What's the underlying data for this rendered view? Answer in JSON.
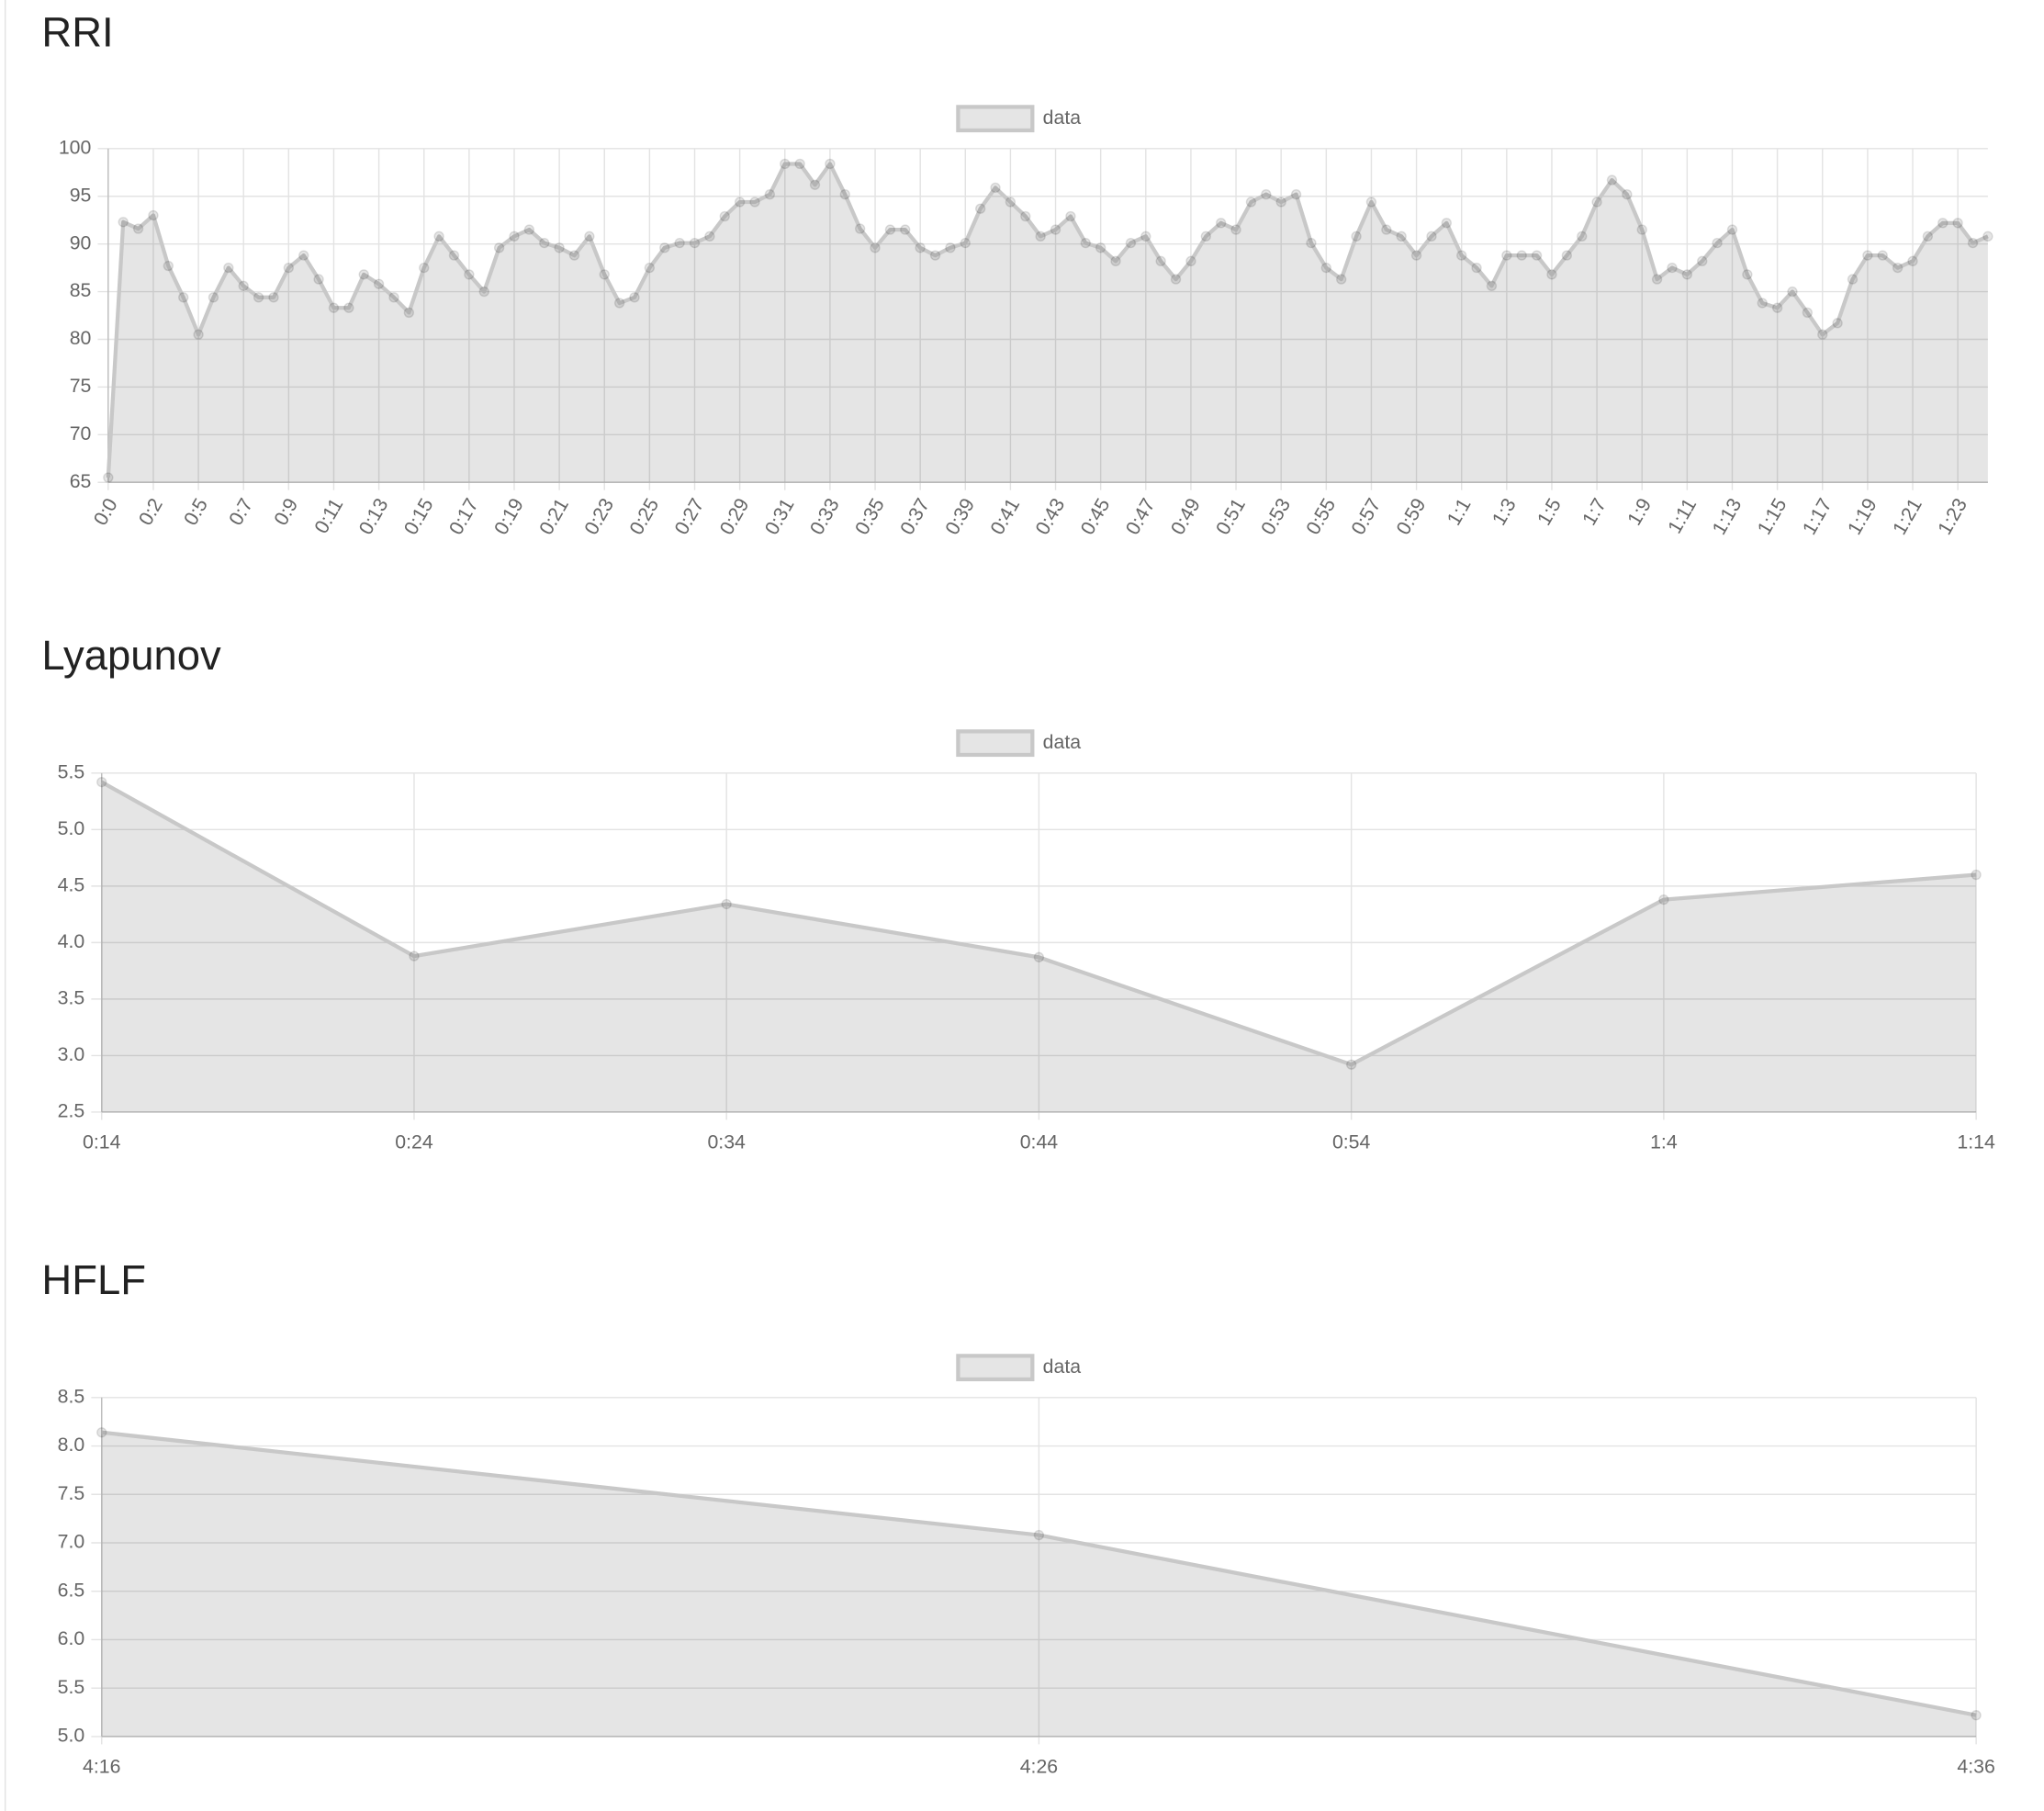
{
  "chart_data": [
    {
      "type": "line",
      "title": "RRI",
      "categories": [
        "0:0",
        null,
        null,
        "0:2",
        null,
        null,
        "0:5",
        null,
        null,
        "0:7",
        null,
        null,
        "0:9",
        null,
        null,
        "0:11",
        null,
        null,
        "0:13",
        null,
        null,
        "0:15",
        null,
        null,
        "0:17",
        null,
        null,
        "0:19",
        null,
        null,
        "0:21",
        null,
        null,
        "0:23",
        null,
        null,
        "0:25",
        null,
        null,
        "0:27",
        null,
        null,
        "0:29",
        null,
        null,
        "0:31",
        null,
        null,
        "0:33",
        null,
        null,
        "0:35",
        null,
        null,
        "0:37",
        null,
        null,
        "0:39",
        null,
        null,
        "0:41",
        null,
        null,
        "0:43",
        null,
        null,
        "0:45",
        null,
        null,
        "0:47",
        null,
        null,
        "0:49",
        null,
        null,
        "0:51",
        null,
        null,
        "0:53",
        null,
        null,
        "0:55",
        null,
        null,
        "0:57",
        null,
        null,
        "0:59",
        null,
        null,
        "1:1",
        null,
        null,
        "1:3",
        null,
        null,
        "1:5",
        null,
        null,
        "1:7",
        null,
        null,
        "1:9",
        null,
        null,
        "1:11",
        null,
        null,
        "1:13",
        null,
        null,
        "1:15",
        null,
        null,
        "1:17",
        null,
        null,
        "1:19",
        null,
        null,
        "1:21",
        null,
        null,
        "1:23",
        null,
        null
      ],
      "series": [
        {
          "name": "data",
          "color": "#c8c8c8",
          "values": [
            65.5,
            92.3,
            91.6,
            93,
            87.7,
            84.4,
            80.5,
            84.4,
            87.5,
            85.6,
            84.4,
            84.4,
            87.5,
            88.8,
            86.3,
            83.3,
            83.3,
            86.8,
            85.8,
            84.4,
            82.8,
            87.5,
            90.8,
            88.8,
            86.8,
            85,
            89.6,
            90.8,
            91.5,
            90.1,
            89.6,
            88.8,
            90.8,
            86.8,
            83.8,
            84.4,
            87.5,
            89.6,
            90.1,
            90.1,
            90.8,
            92.9,
            94.4,
            94.4,
            95.2,
            98.4,
            98.4,
            96.2,
            98.4,
            95.2,
            91.6,
            89.6,
            91.5,
            91.5,
            89.6,
            88.8,
            89.6,
            90.1,
            93.7,
            95.9,
            94.4,
            92.9,
            90.8,
            91.5,
            92.9,
            90.1,
            89.6,
            88.2,
            90.1,
            90.8,
            88.2,
            86.3,
            88.2,
            90.8,
            92.2,
            91.5,
            94.4,
            95.2,
            94.4,
            95.2,
            90.1,
            87.5,
            86.3,
            90.8,
            94.4,
            91.5,
            90.8,
            88.8,
            90.8,
            92.2,
            88.8,
            87.5,
            85.6,
            88.8,
            88.8,
            88.8,
            86.8,
            88.8,
            90.8,
            94.4,
            96.7,
            95.2,
            91.5,
            86.3,
            87.5,
            86.8,
            88.2,
            90.1,
            91.5,
            86.8,
            83.8,
            83.3,
            85,
            82.8,
            80.5,
            81.7,
            86.3,
            88.8,
            88.8,
            87.5,
            88.2,
            90.8,
            92.2,
            92.2,
            90.1,
            90.8
          ]
        }
      ],
      "ylim": [
        65,
        100
      ],
      "yticks": [
        65,
        70,
        75,
        80,
        85,
        90,
        95,
        100
      ],
      "grid": true,
      "fill": true,
      "legend": "top",
      "rotate_x_labels": true
    },
    {
      "type": "line",
      "title": "Lyapunov",
      "categories": [
        "0:14",
        "0:24",
        "0:34",
        "0:44",
        "0:54",
        "1:4",
        "1:14"
      ],
      "series": [
        {
          "name": "data",
          "color": "#c8c8c8",
          "values": [
            5.42,
            3.88,
            4.34,
            3.87,
            2.92,
            4.38,
            4.6
          ]
        }
      ],
      "ylim": [
        2.5,
        5.5
      ],
      "yticks": [
        2.5,
        {
          "value": 3,
          "label": "3.0"
        },
        3.5,
        {
          "value": 4,
          "label": "4.0"
        },
        4.5,
        {
          "value": 5,
          "label": "5.0"
        },
        5.5
      ],
      "grid": true,
      "fill": true,
      "legend": "top",
      "rotate_x_labels": false
    },
    {
      "type": "line",
      "title": "HFLF",
      "categories": [
        "4:16",
        "4:26",
        "4:36"
      ],
      "series": [
        {
          "name": "data",
          "color": "#c8c8c8",
          "values": [
            8.14,
            7.08,
            5.22
          ]
        }
      ],
      "ylim": [
        5,
        8.5
      ],
      "yticks": [
        {
          "value": 5,
          "label": "5.0"
        },
        5.5,
        {
          "value": 6,
          "label": "6.0"
        },
        6.5,
        {
          "value": 7,
          "label": "7.0"
        },
        7.5,
        {
          "value": 8,
          "label": "8.0"
        },
        8.5
      ],
      "grid": true,
      "fill": true,
      "legend": "top",
      "rotate_x_labels": false
    }
  ]
}
